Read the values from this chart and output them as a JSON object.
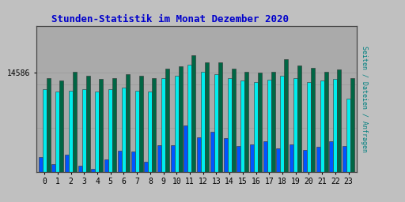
{
  "title": "Stunden-Statistik im Monat Dezember 2020",
  "title_color": "#0000cc",
  "title_fontsize": 9,
  "ylabel_right": "Seiten / Dateien / Anfragen",
  "ylabel_right_color": "#008080",
  "background_color": "#c0c0c0",
  "plot_bg_color": "#aaaaaa",
  "ytick_label": "14586",
  "ytick_value": 14586,
  "ymin": 12000,
  "ymax": 15800,
  "hours": [
    0,
    1,
    2,
    3,
    4,
    5,
    6,
    7,
    8,
    9,
    10,
    11,
    12,
    13,
    14,
    15,
    16,
    17,
    18,
    19,
    20,
    21,
    22,
    23
  ],
  "bar_width": 0.3,
  "colors": {
    "blue": "#0055ff",
    "cyan": "#00eeee",
    "green": "#006644"
  },
  "anfragen": [
    12380,
    12200,
    12450,
    12150,
    12080,
    12320,
    12550,
    12520,
    12250,
    12700,
    12700,
    13200,
    12900,
    13050,
    12880,
    12680,
    12720,
    12800,
    12620,
    12720,
    12560,
    12660,
    12800,
    12680
  ],
  "seiten": [
    14150,
    14100,
    14120,
    14150,
    14100,
    14150,
    14200,
    14120,
    14100,
    14450,
    14500,
    14800,
    14600,
    14550,
    14450,
    14380,
    14350,
    14400,
    14500,
    14450,
    14350,
    14380,
    14420,
    13900
  ],
  "dateien": [
    14450,
    14380,
    14600,
    14500,
    14420,
    14450,
    14550,
    14500,
    14450,
    14700,
    14750,
    15050,
    14850,
    14850,
    14700,
    14620,
    14580,
    14620,
    14950,
    14780,
    14720,
    14600,
    14680,
    14450
  ]
}
